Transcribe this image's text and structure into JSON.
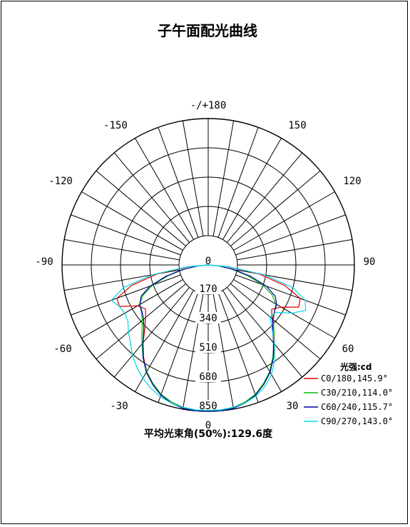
{
  "chart_data": {
    "type": "polar",
    "title": "子午面配光曲线",
    "angle_labels": [
      "-/+180",
      "-150",
      "150",
      "-120",
      "120",
      "-90",
      "90",
      "-60",
      "60",
      "-30",
      "30",
      "0"
    ],
    "radial_ticks": [
      "0",
      "170",
      "340",
      "510",
      "680",
      "850"
    ],
    "radial_max": 850,
    "grid": true,
    "angular_spacing_deg": 10,
    "legend": {
      "title": "光强:cd",
      "placement": "bottom-right",
      "entries": [
        "C0/180,145.9°",
        "C30/210,114.0°",
        "C60/240,115.7°",
        "C90/270,143.0°"
      ]
    },
    "beam_angle_label": "平均光束角(50%):129.6度",
    "series": [
      {
        "name": "C0/180,145.9°",
        "color": "#e00000",
        "angles": [
          -90,
          -85,
          -80,
          -75,
          -70,
          -65,
          -60,
          -55,
          -50,
          -45,
          -40,
          -35,
          -30,
          -25,
          -20,
          -15,
          -10,
          -5,
          0,
          5,
          10,
          15,
          20,
          25,
          30,
          35,
          40,
          45,
          50,
          55,
          60,
          65,
          70,
          75,
          80,
          85,
          90
        ],
        "values": [
          0,
          110,
          300,
          460,
          565,
          570,
          475,
          445,
          475,
          520,
          590,
          655,
          715,
          760,
          800,
          825,
          840,
          845,
          845,
          845,
          840,
          825,
          800,
          765,
          720,
          660,
          600,
          540,
          485,
          450,
          490,
          580,
          570,
          460,
          300,
          110,
          0
        ]
      },
      {
        "name": "C30/210,114.0°",
        "color": "#00bb00",
        "angles": [
          -90,
          -85,
          -80,
          -75,
          -70,
          -65,
          -60,
          -55,
          -50,
          -45,
          -40,
          -35,
          -30,
          -25,
          -20,
          -15,
          -10,
          -5,
          0,
          5,
          10,
          15,
          20,
          25,
          30,
          35,
          40,
          45,
          50,
          55,
          60,
          65,
          70,
          75,
          80,
          85,
          90
        ],
        "values": [
          0,
          60,
          140,
          240,
          345,
          420,
          460,
          475,
          500,
          545,
          600,
          660,
          715,
          760,
          800,
          825,
          840,
          845,
          845,
          845,
          840,
          825,
          800,
          760,
          715,
          655,
          595,
          540,
          495,
          470,
          455,
          410,
          335,
          235,
          135,
          60,
          0
        ]
      },
      {
        "name": "C60/240,115.7°",
        "color": "#0000aa",
        "angles": [
          -90,
          -85,
          -80,
          -75,
          -70,
          -65,
          -60,
          -55,
          -50,
          -45,
          -40,
          -35,
          -30,
          -25,
          -20,
          -15,
          -10,
          -5,
          0,
          5,
          10,
          15,
          20,
          25,
          30,
          35,
          40,
          45,
          50,
          55,
          60,
          65,
          70,
          75,
          80,
          85,
          90
        ],
        "values": [
          0,
          60,
          150,
          255,
          360,
          430,
          460,
          470,
          490,
          530,
          590,
          660,
          720,
          765,
          805,
          830,
          845,
          850,
          850,
          850,
          845,
          830,
          805,
          765,
          720,
          660,
          590,
          530,
          490,
          470,
          460,
          430,
          360,
          255,
          150,
          60,
          0
        ]
      },
      {
        "name": "C90/270,143.0°",
        "color": "#00d8e8",
        "angles": [
          -90,
          -85,
          -80,
          -75,
          -70,
          -65,
          -60,
          -55,
          -50,
          -45,
          -40,
          -35,
          -30,
          -25,
          -20,
          -15,
          -10,
          -5,
          0,
          5,
          10,
          15,
          20,
          25,
          30,
          35,
          40,
          45,
          50,
          55,
          60,
          65,
          70,
          75,
          80,
          85,
          90
        ],
        "values": [
          0,
          120,
          330,
          510,
          600,
          570,
          560,
          570,
          605,
          640,
          685,
          725,
          760,
          790,
          815,
          830,
          840,
          845,
          845,
          845,
          840,
          830,
          810,
          780,
          735,
          675,
          600,
          525,
          470,
          480,
          560,
          625,
          600,
          510,
          330,
          120,
          0
        ]
      }
    ]
  }
}
